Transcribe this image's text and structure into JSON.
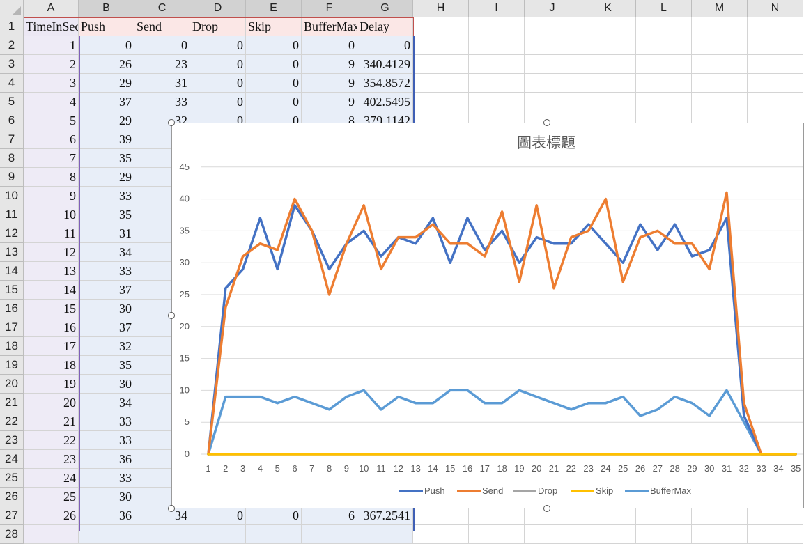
{
  "columns": [
    "A",
    "B",
    "C",
    "D",
    "E",
    "F",
    "G",
    "H",
    "I",
    "J",
    "K",
    "L",
    "M",
    "N"
  ],
  "headers": [
    "TimeInSec",
    "Push",
    "Send",
    "Drop",
    "Skip",
    "BufferMax",
    "Delay"
  ],
  "rows": [
    [
      "1",
      "0",
      "0",
      "0",
      "0",
      "0",
      "0"
    ],
    [
      "2",
      "26",
      "23",
      "0",
      "0",
      "9",
      "340.4129"
    ],
    [
      "3",
      "29",
      "31",
      "0",
      "0",
      "9",
      "354.8572"
    ],
    [
      "4",
      "37",
      "33",
      "0",
      "0",
      "9",
      "402.5495"
    ],
    [
      "5",
      "29",
      "32",
      "0",
      "0",
      "8",
      "379.1142"
    ],
    [
      "6",
      "39",
      "",
      "",
      "",
      "",
      ""
    ],
    [
      "7",
      "35",
      "",
      "",
      "",
      "",
      ""
    ],
    [
      "8",
      "29",
      "",
      "",
      "",
      "",
      ""
    ],
    [
      "9",
      "33",
      "",
      "",
      "",
      "",
      ""
    ],
    [
      "10",
      "35",
      "",
      "",
      "",
      "",
      ""
    ],
    [
      "11",
      "31",
      "",
      "",
      "",
      "",
      ""
    ],
    [
      "12",
      "34",
      "",
      "",
      "",
      "",
      ""
    ],
    [
      "13",
      "33",
      "",
      "",
      "",
      "",
      ""
    ],
    [
      "14",
      "37",
      "",
      "",
      "",
      "",
      ""
    ],
    [
      "15",
      "30",
      "",
      "",
      "",
      "",
      ""
    ],
    [
      "16",
      "37",
      "",
      "",
      "",
      "",
      ""
    ],
    [
      "17",
      "32",
      "",
      "",
      "",
      "",
      ""
    ],
    [
      "18",
      "35",
      "",
      "",
      "",
      "",
      ""
    ],
    [
      "19",
      "30",
      "",
      "",
      "",
      "",
      ""
    ],
    [
      "20",
      "34",
      "",
      "",
      "",
      "",
      ""
    ],
    [
      "21",
      "33",
      "",
      "",
      "",
      "",
      ""
    ],
    [
      "22",
      "33",
      "",
      "",
      "",
      "",
      ""
    ],
    [
      "23",
      "36",
      "",
      "",
      "",
      "",
      ""
    ],
    [
      "24",
      "33",
      "",
      "",
      "",
      "",
      ""
    ],
    [
      "25",
      "30",
      "",
      "",
      "",
      "",
      ""
    ],
    [
      "26",
      "36",
      "34",
      "0",
      "0",
      "6",
      "367.2541"
    ]
  ],
  "chart_data": {
    "type": "line",
    "title": "圖表標題",
    "x": [
      1,
      2,
      3,
      4,
      5,
      6,
      7,
      8,
      9,
      10,
      11,
      12,
      13,
      14,
      15,
      16,
      17,
      18,
      19,
      20,
      21,
      22,
      23,
      24,
      25,
      26,
      27,
      28,
      29,
      30,
      31,
      32,
      33,
      34,
      35
    ],
    "ylim": [
      0,
      45
    ],
    "yticks": [
      0,
      5,
      10,
      15,
      20,
      25,
      30,
      35,
      40,
      45
    ],
    "grid": true,
    "legend_position": "bottom",
    "series": [
      {
        "name": "Push",
        "color": "#4472c4",
        "values": [
          0,
          26,
          29,
          37,
          29,
          39,
          35,
          29,
          33,
          35,
          31,
          34,
          33,
          37,
          30,
          37,
          32,
          35,
          30,
          34,
          33,
          33,
          36,
          33,
          30,
          36,
          32,
          36,
          31,
          32,
          37,
          6,
          0,
          0,
          0
        ]
      },
      {
        "name": "Send",
        "color": "#ed7d31",
        "values": [
          0,
          23,
          31,
          33,
          32,
          40,
          35,
          25,
          33,
          39,
          29,
          34,
          34,
          36,
          33,
          33,
          31,
          38,
          27,
          39,
          26,
          34,
          35,
          40,
          27,
          34,
          35,
          33,
          33,
          29,
          41,
          8,
          0,
          0,
          0
        ]
      },
      {
        "name": "Drop",
        "color": "#a5a5a5",
        "values": [
          0,
          0,
          0,
          0,
          0,
          0,
          0,
          0,
          0,
          0,
          0,
          0,
          0,
          0,
          0,
          0,
          0,
          0,
          0,
          0,
          0,
          0,
          0,
          0,
          0,
          0,
          0,
          0,
          0,
          0,
          0,
          0,
          0,
          0,
          0
        ]
      },
      {
        "name": "Skip",
        "color": "#ffc000",
        "values": [
          0,
          0,
          0,
          0,
          0,
          0,
          0,
          0,
          0,
          0,
          0,
          0,
          0,
          0,
          0,
          0,
          0,
          0,
          0,
          0,
          0,
          0,
          0,
          0,
          0,
          0,
          0,
          0,
          0,
          0,
          0,
          0,
          0,
          0,
          0
        ]
      },
      {
        "name": "BufferMax",
        "color": "#5b9bd5",
        "values": [
          0,
          9,
          9,
          9,
          8,
          9,
          8,
          7,
          9,
          10,
          7,
          9,
          8,
          8,
          10,
          10,
          8,
          8,
          10,
          9,
          8,
          7,
          8,
          8,
          9,
          6,
          7,
          9,
          8,
          6,
          10,
          5,
          0,
          0,
          0
        ]
      }
    ]
  }
}
